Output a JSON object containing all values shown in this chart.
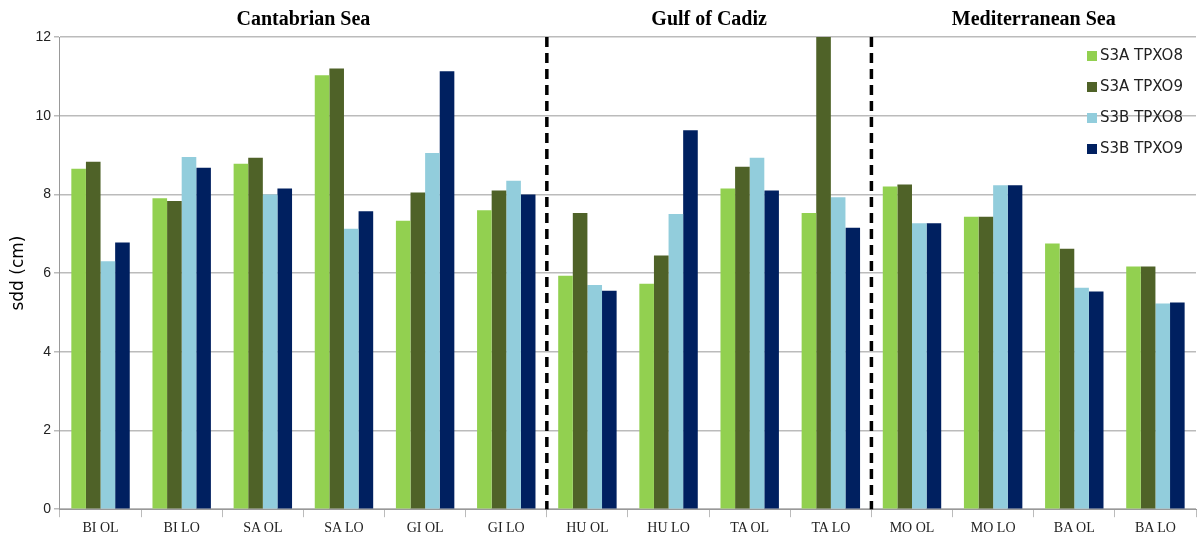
{
  "chart_data": {
    "type": "bar",
    "ylabel": "sdd (cm)",
    "categories": [
      "BI OL",
      "BI LO",
      "SA OL",
      "SA LO",
      "GI OL",
      "GI LO",
      "HU OL",
      "HU LO",
      "TA OL",
      "TA LO",
      "MO OL",
      "MO LO",
      "BA OL",
      "BA LO"
    ],
    "series": [
      {
        "name": "S3A TPXO8",
        "color": "#92d050",
        "values": [
          8.65,
          7.9,
          8.78,
          11.03,
          7.33,
          7.6,
          5.93,
          5.73,
          8.15,
          7.53,
          8.2,
          7.43,
          6.75,
          6.17
        ]
      },
      {
        "name": "S3A TPXO9",
        "color": "#4f6228",
        "values": [
          8.83,
          7.83,
          8.93,
          11.2,
          8.05,
          8.1,
          7.53,
          6.45,
          8.7,
          12,
          8.25,
          7.43,
          6.62,
          6.17
        ]
      },
      {
        "name": "S3B TPXO8",
        "color": "#92cddc",
        "values": [
          6.3,
          8.95,
          8.0,
          7.13,
          9.05,
          8.35,
          5.7,
          7.5,
          8.93,
          7.93,
          7.27,
          8.23,
          5.63,
          5.23
        ]
      },
      {
        "name": "S3B TPXO9",
        "color": "#002060",
        "values": [
          6.78,
          8.68,
          8.15,
          7.57,
          11.13,
          8.0,
          5.55,
          9.63,
          8.1,
          7.15,
          7.27,
          8.23,
          5.53,
          5.25
        ]
      }
    ],
    "ylim": [
      0,
      12
    ],
    "yticks": [
      0,
      2,
      4,
      6,
      8,
      10,
      12
    ],
    "grid": "y",
    "legend": "top right",
    "annotations": [
      "Cantabrian Sea",
      "Gulf of Cadiz",
      "Mediterranean Sea"
    ]
  }
}
